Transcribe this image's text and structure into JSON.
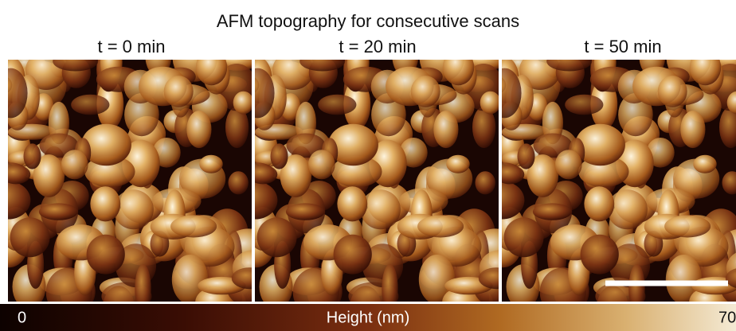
{
  "title": "AFM topography for consecutive scans",
  "panels": [
    {
      "label": "t = 0 min"
    },
    {
      "label": "t = 20 min"
    },
    {
      "label": "t = 50 min"
    }
  ],
  "colorbar": {
    "min_label": "0",
    "axis_label": "Height (nm)",
    "max_label": "70"
  }
}
